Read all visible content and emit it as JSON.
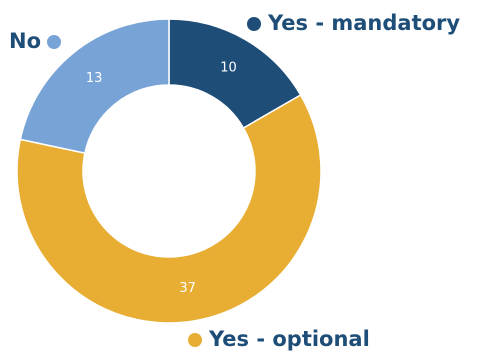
{
  "chart_data": {
    "type": "pie",
    "donut": true,
    "categories": [
      "Yes - mandatory",
      "Yes - optional",
      "No"
    ],
    "values": [
      10,
      37,
      13
    ],
    "colors": [
      "#1e4d78",
      "#e8ae34",
      "#77a3d6"
    ],
    "data_labels": [
      "10",
      "37",
      "13"
    ],
    "legend_text_color": "#1e4d78",
    "label_color": "#ffffff",
    "start_angle_deg": 0,
    "direction": "clockwise"
  }
}
